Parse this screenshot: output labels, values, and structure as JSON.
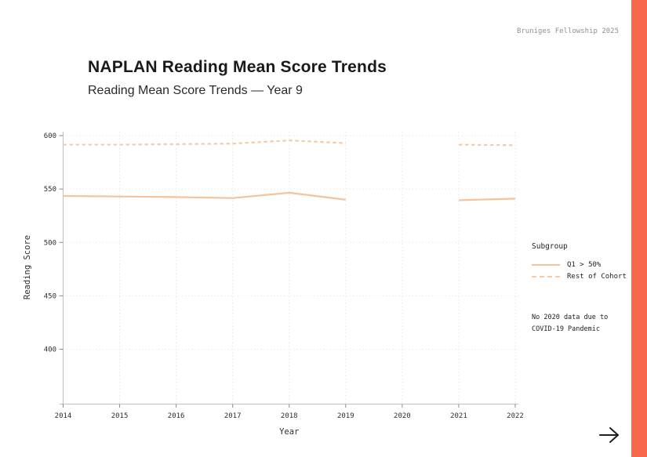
{
  "slide": {
    "credit": "Bruniges Fellowship 2025",
    "title": "NAPLAN Reading Mean Score Trends",
    "subtitle": "Reading Mean Score Trends — Year 9",
    "accent_color": "#f8684c"
  },
  "colors": {
    "axis": "#bfbfbf",
    "tick_mark": "#8a8a8a",
    "tick_label": "#2e2e2e",
    "grid_vertical": "#e3e3e3",
    "grid_horizontal": "#ede3d9",
    "credit_text": "#8f8f8f",
    "arrow": "#1f1f1f"
  },
  "icons": {
    "next_arrow": "→"
  },
  "chart_data": {
    "type": "line",
    "title": "NAPLAN Reading Mean Score Trends",
    "subtitle": "Reading Mean Score Trends — Year 9",
    "xlabel": "Year",
    "ylabel": "Reading Score",
    "x": [
      2014,
      2015,
      2016,
      2017,
      2018,
      2019,
      2020,
      2021,
      2022
    ],
    "xlim": [
      2014,
      2022
    ],
    "yticks": [
      400,
      450,
      500,
      550,
      600
    ],
    "ylim": [
      350,
      604
    ],
    "grid": "dotted",
    "legend_position": "right",
    "legend_title": "Subgroup",
    "series": [
      {
        "name": "Q1 > 50%",
        "style": "solid",
        "color": "#f5c29a",
        "values": [
          543.5,
          543,
          542.5,
          541.5,
          546.5,
          540,
          null,
          539.5,
          541
        ]
      },
      {
        "name": "Rest of Cohort",
        "style": "dashed",
        "color": "#f4cda6",
        "values": [
          591.5,
          591.5,
          592,
          592.5,
          595.5,
          593,
          null,
          591.5,
          591
        ]
      }
    ],
    "annotation_lines": [
      "No 2020 data due to",
      "COVID-19 Pandemic"
    ]
  }
}
